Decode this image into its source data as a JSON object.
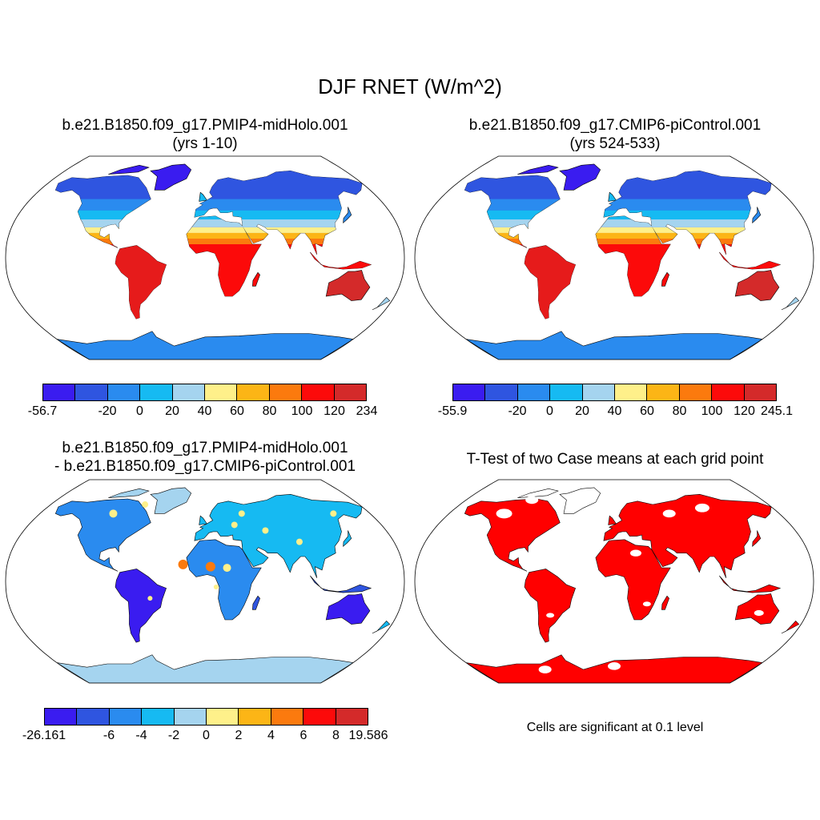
{
  "title": "DJF RNET (W/m^2)",
  "panels": {
    "p1": {
      "title_line1": "b.e21.B1850.f09_g17.PMIP4-midHolo.001",
      "title_line2": "(yrs 1-10)"
    },
    "p2": {
      "title_line1": "b.e21.B1850.f09_g17.CMIP6-piControl.001",
      "title_line2": "(yrs 524-533)"
    },
    "p3": {
      "title_line1": "b.e21.B1850.f09_g17.PMIP4-midHolo.001",
      "title_line2": "- b.e21.B1850.f09_g17.CMIP6-piControl.001"
    },
    "p4": {
      "title_line1": "T-Test of two Case means at each grid point",
      "note": "Cells are significant at 0.1 level"
    }
  },
  "colorbars": {
    "c1": {
      "labels": [
        "-56.7",
        "-20",
        "0",
        "20",
        "40",
        "60",
        "80",
        "100",
        "120",
        "234"
      ]
    },
    "c2": {
      "labels": [
        "-55.9",
        "-20",
        "0",
        "20",
        "40",
        "60",
        "80",
        "100",
        "120",
        "245.1"
      ]
    },
    "c3": {
      "labels": [
        "-26.161",
        "-6",
        "-4",
        "-2",
        "0",
        "2",
        "4",
        "6",
        "8",
        "19.586"
      ]
    }
  },
  "palette": [
    "#3a1cf0",
    "#2f55e0",
    "#2a8bef",
    "#16baf2",
    "#a5d4ef",
    "#fef08a",
    "#fcb516",
    "#fb7a0e",
    "#fc0a0a",
    "#d42a2a"
  ],
  "significance_color": "#ff0000",
  "map_colors": {
    "ocean": "#ffffff",
    "outline": "#000000"
  }
}
